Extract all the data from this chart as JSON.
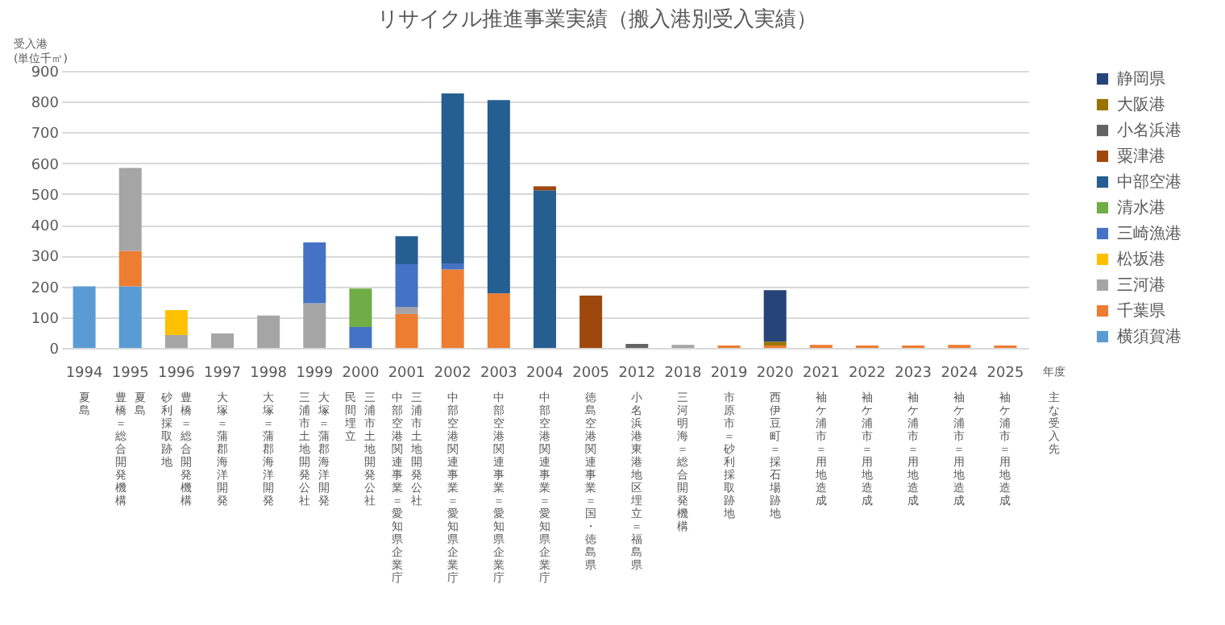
{
  "chart_data": {
    "type": "bar",
    "stacked": true,
    "title": "リサイクル推進事業実績（搬入港別受入実績）",
    "ylabel": "受入港\n(単位千㎥)",
    "xlabel": "年度",
    "categories": [
      "1994",
      "1995",
      "1996",
      "1997",
      "1998",
      "1999",
      "2000",
      "2001",
      "2002",
      "2003",
      "2004",
      "2005",
      "2012",
      "2018",
      "2019",
      "2020",
      "2021",
      "2022",
      "2023",
      "2024",
      "2025"
    ],
    "series": [
      {
        "name": "横須賀港",
        "color": "#5b9bd5",
        "values": [
          200,
          200,
          null,
          null,
          null,
          null,
          null,
          null,
          null,
          null,
          null,
          null,
          null,
          null,
          null,
          null,
          null,
          null,
          null,
          null,
          null
        ]
      },
      {
        "name": "千葉県",
        "color": "#ed7d31",
        "values": [
          null,
          115,
          null,
          null,
          null,
          null,
          null,
          110,
          255,
          177,
          null,
          null,
          null,
          null,
          8,
          8,
          10,
          8,
          8,
          10,
          8
        ]
      },
      {
        "name": "三河港",
        "color": "#a5a5a5",
        "values": [
          null,
          270,
          42,
          47,
          105,
          145,
          null,
          23,
          null,
          null,
          null,
          null,
          null,
          10,
          null,
          null,
          null,
          null,
          null,
          null,
          null
        ]
      },
      {
        "name": "松坂港",
        "color": "#ffc000",
        "values": [
          null,
          null,
          81,
          null,
          null,
          null,
          null,
          null,
          null,
          null,
          null,
          null,
          null,
          null,
          null,
          null,
          null,
          null,
          null,
          null,
          null
        ]
      },
      {
        "name": "三崎漁港",
        "color": "#4472c4",
        "values": [
          null,
          null,
          null,
          null,
          null,
          198,
          68,
          139,
          20,
          null,
          null,
          null,
          null,
          null,
          null,
          null,
          null,
          null,
          null,
          null,
          null
        ]
      },
      {
        "name": "清水港",
        "color": "#70ad47",
        "values": [
          null,
          null,
          null,
          null,
          null,
          null,
          125,
          null,
          null,
          null,
          null,
          null,
          null,
          null,
          null,
          null,
          null,
          null,
          null,
          null,
          null
        ]
      },
      {
        "name": "中部空港",
        "color": "#255e91",
        "values": [
          null,
          null,
          null,
          null,
          null,
          null,
          null,
          91,
          552,
          628,
          512,
          null,
          null,
          null,
          null,
          null,
          null,
          null,
          null,
          null,
          null
        ]
      },
      {
        "name": "粟津港",
        "color": "#9e480e",
        "values": [
          null,
          null,
          null,
          null,
          null,
          null,
          null,
          null,
          null,
          null,
          13,
          170,
          null,
          null,
          null,
          null,
          null,
          null,
          null,
          null,
          null
        ]
      },
      {
        "name": "小名浜港",
        "color": "#636363",
        "values": [
          null,
          null,
          null,
          null,
          null,
          null,
          null,
          null,
          null,
          null,
          null,
          null,
          13,
          null,
          null,
          null,
          null,
          null,
          null,
          null,
          null
        ]
      },
      {
        "name": "大阪港",
        "color": "#997300",
        "values": [
          null,
          null,
          null,
          null,
          null,
          null,
          null,
          null,
          null,
          null,
          null,
          null,
          null,
          null,
          null,
          12,
          null,
          null,
          null,
          null,
          null
        ]
      },
      {
        "name": "静岡県",
        "color": "#264478",
        "values": [
          null,
          null,
          null,
          null,
          null,
          null,
          null,
          null,
          null,
          null,
          null,
          null,
          null,
          null,
          null,
          168,
          null,
          null,
          null,
          null,
          null
        ]
      }
    ],
    "ylim": [
      0,
      900
    ],
    "yticks": [
      0,
      100,
      200,
      300,
      400,
      500,
      600,
      700,
      800,
      900
    ],
    "grid": "y",
    "legend": "right",
    "annotations": [
      "夏島",
      "夏島",
      "豊橋＝総合開発機構",
      "豊橋＝総合開発機構",
      "砂利採取跡地",
      "大塚＝蒲郡海洋開発",
      "大塚＝蒲郡海洋開発",
      "大塚＝蒲郡海洋開発",
      "三浦市土地開発公社",
      "三浦市土地開発公社",
      "民間埋立",
      "三浦市土地開発公社",
      "中部空港関連事業＝愛知県企業庁",
      "中部空港関連事業＝愛知県企業庁",
      "中部空港関連事業＝愛知県企業庁",
      "中部空港関連事業＝愛知県企業庁",
      "徳島空港関連事業＝国・徳島県",
      "小名浜港東港地区埋立＝福島県",
      "三河明海＝総合開発機構",
      "市原市＝砂利採取跡地",
      "西伊豆町＝採石場跡地",
      "袖ケ浦市＝用地造成",
      "袖ケ浦市＝用地造成",
      "袖ケ浦市＝用地造成",
      "袖ケ浦市＝用地造成",
      "袖ケ浦市＝用地造成",
      "主な受入先"
    ]
  }
}
